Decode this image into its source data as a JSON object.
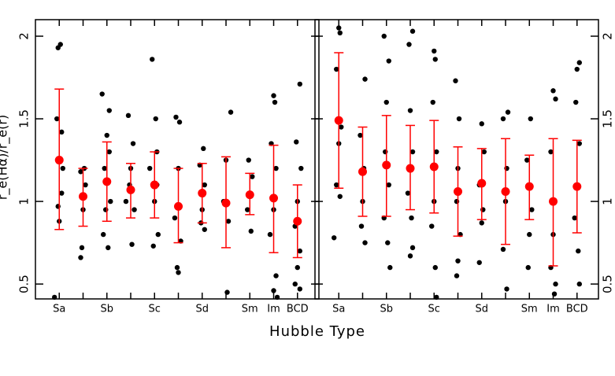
{
  "chart_data": [
    {
      "type": "scatter",
      "xlabel": "Hubble Type",
      "ylabel": "r_e(Hα)/r_e(r)",
      "ytick_side": "left",
      "categories": [
        "Sa",
        null,
        "Sb",
        null,
        "Sc",
        null,
        "Sd",
        null,
        "Sm",
        "Im",
        "BCD"
      ],
      "xlim": [
        -1,
        10.9
      ],
      "ylim": [
        0.41,
        2.1
      ],
      "yticks": [
        0.5,
        1,
        1.5,
        2
      ],
      "color": "#000000",
      "mean_color": "#ff0000",
      "points": {
        "x": [
          -0.2,
          0.05,
          -0.05,
          0.1,
          -0.1,
          0.1,
          -0.05,
          0.15,
          0,
          0.9,
          1.05,
          0.95,
          1.1,
          1.0,
          0.9,
          1.8,
          2.1,
          2.0,
          1.9,
          2.15,
          1.85,
          2.05,
          2.1,
          1.95,
          2.9,
          3.1,
          3.0,
          2.8,
          3.15,
          3.05,
          2.95,
          3.9,
          4.05,
          4.1,
          3.8,
          4.0,
          4.15,
          3.95,
          4.1,
          4.9,
          5.05,
          5.0,
          4.85,
          5.1,
          4.95,
          5.0,
          6.05,
          5.9,
          6.1,
          6.0,
          5.95,
          6.1,
          7.2,
          7.0,
          6.9,
          7.1,
          7.05,
          7.95,
          8.1,
          8.0,
          7.9,
          8.05,
          9.0,
          9.05,
          8.9,
          9.1,
          9.0,
          8.85,
          9.1,
          9.0,
          9.15,
          10.1,
          9.95,
          10.15,
          10.0,
          9.9,
          10.1,
          10.0,
          9.9,
          10.1
        ],
        "y": [
          0.42,
          1.95,
          1.93,
          1.42,
          1.5,
          1.05,
          0.97,
          1.2,
          0.88,
          0.66,
          1.2,
          0.72,
          1.1,
          0.95,
          1.18,
          1.65,
          1.55,
          1.4,
          1.2,
          1.0,
          0.8,
          0.72,
          1.3,
          0.95,
          1.52,
          1.35,
          1.2,
          1.0,
          0.95,
          0.74,
          1.1,
          1.86,
          1.5,
          1.3,
          1.2,
          1.0,
          0.8,
          0.73,
          1.1,
          1.51,
          1.48,
          1.2,
          0.9,
          0.76,
          0.6,
          0.57,
          1.32,
          1.22,
          1.1,
          0.95,
          0.87,
          0.83,
          1.54,
          1.25,
          1.0,
          0.88,
          0.45,
          1.25,
          1.15,
          1.05,
          0.95,
          0.82,
          1.64,
          1.6,
          1.35,
          1.2,
          0.95,
          0.8,
          0.55,
          0.46,
          0.42,
          1.71,
          1.36,
          1.2,
          1.0,
          0.85,
          0.7,
          0.6,
          0.5,
          0.47
        ]
      },
      "means": {
        "values": [
          1.25,
          1.03,
          1.12,
          1.07,
          1.1,
          0.97,
          1.05,
          0.99,
          1.04,
          1.02,
          0.88
        ],
        "lower": [
          0.83,
          0.85,
          0.88,
          0.9,
          0.9,
          0.75,
          0.87,
          0.72,
          0.92,
          0.69,
          0.66
        ],
        "upper": [
          1.68,
          1.2,
          1.36,
          1.23,
          1.3,
          1.2,
          1.23,
          1.27,
          1.17,
          1.34,
          1.1
        ]
      }
    },
    {
      "type": "scatter",
      "ytick_side": "right",
      "categories": [
        "Sa",
        null,
        "Sb",
        null,
        "Sc",
        null,
        "Sd",
        null,
        "Sm",
        "Im",
        "BCD"
      ],
      "xlim": [
        -1,
        10.9
      ],
      "ylim": [
        0.41,
        2.1
      ],
      "yticks": [
        0.5,
        1,
        1.5,
        2
      ],
      "color": "#000000",
      "mean_color": "#ff0000",
      "points": {
        "x": [
          0.0,
          0.05,
          -0.1,
          0.1,
          0,
          -0.1,
          0.05,
          -0.2,
          1.1,
          0.9,
          1.05,
          1.0,
          0.95,
          1.1,
          1.9,
          2.1,
          2.0,
          1.95,
          2.1,
          1.9,
          2.05,
          2.15,
          3.1,
          2.95,
          3.0,
          3.1,
          2.9,
          3.05,
          3.1,
          3.0,
          4.0,
          4.05,
          3.95,
          4.1,
          4.0,
          3.9,
          4.05,
          4.1,
          4.9,
          5.05,
          5.0,
          4.95,
          5.1,
          5.0,
          4.95,
          6.0,
          6.1,
          5.9,
          6.05,
          6.0,
          5.9,
          7.1,
          6.9,
          7.05,
          7.0,
          6.9,
          7.05,
          8.05,
          7.9,
          8.0,
          8.1,
          8.0,
          7.95,
          9.0,
          9.1,
          8.9,
          9.05,
          9.0,
          8.9,
          9.1,
          9.05,
          10.1,
          10.0,
          9.95,
          10.1,
          10.0,
          9.9,
          10.05,
          10.1
        ],
        "y": [
          2.05,
          2.02,
          1.8,
          1.45,
          1.35,
          1.1,
          1.03,
          0.78,
          1.74,
          1.4,
          1.2,
          1.0,
          0.85,
          0.75,
          2.0,
          1.85,
          1.6,
          1.3,
          1.1,
          0.9,
          0.75,
          0.6,
          2.03,
          1.95,
          1.55,
          1.3,
          1.05,
          0.9,
          0.72,
          0.67,
          1.91,
          1.86,
          1.6,
          1.3,
          1.0,
          0.85,
          0.6,
          0.42,
          1.73,
          1.5,
          1.2,
          1.0,
          0.8,
          0.64,
          0.55,
          1.47,
          1.3,
          1.1,
          0.95,
          0.87,
          0.63,
          1.54,
          1.5,
          1.2,
          1.0,
          0.71,
          0.47,
          1.5,
          1.25,
          1.1,
          0.95,
          0.8,
          0.6,
          1.67,
          1.62,
          1.3,
          1.0,
          0.8,
          0.6,
          0.5,
          0.44,
          1.84,
          1.8,
          1.6,
          1.35,
          1.1,
          0.9,
          0.7,
          0.5
        ]
      },
      "means": {
        "values": [
          1.49,
          1.18,
          1.22,
          1.2,
          1.21,
          1.06,
          1.11,
          1.06,
          1.09,
          1.0,
          1.09
        ],
        "lower": [
          1.08,
          0.91,
          0.91,
          0.95,
          0.93,
          0.79,
          0.89,
          0.74,
          0.89,
          0.61,
          0.81
        ],
        "upper": [
          1.9,
          1.45,
          1.52,
          1.46,
          1.49,
          1.33,
          1.32,
          1.38,
          1.28,
          1.38,
          1.37
        ]
      }
    }
  ]
}
